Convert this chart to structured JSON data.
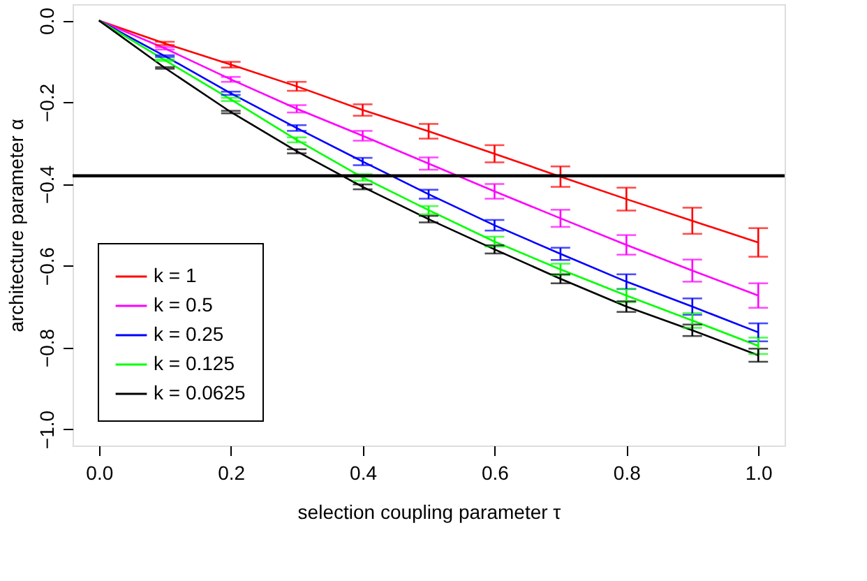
{
  "chart_data": {
    "type": "line",
    "xlabel": "selection coupling parameter τ",
    "ylabel": "architecture parameter α",
    "x": [
      0.0,
      0.1,
      0.2,
      0.3,
      0.4,
      0.5,
      0.6,
      0.7,
      0.8,
      0.9,
      1.0
    ],
    "series": [
      {
        "name": "k = 1",
        "color": "#ff0000",
        "values": [
          0,
          -0.056,
          -0.108,
          -0.161,
          -0.219,
          -0.271,
          -0.326,
          -0.382,
          -0.437,
          -0.49,
          -0.543
        ],
        "errors": [
          null,
          0.004,
          0.007,
          0.011,
          0.014,
          0.018,
          0.021,
          0.025,
          0.028,
          0.032,
          0.035
        ]
      },
      {
        "name": "k = 0.5",
        "color": "#ff00ff",
        "values": [
          0,
          -0.068,
          -0.144,
          -0.216,
          -0.282,
          -0.35,
          -0.418,
          -0.484,
          -0.549,
          -0.612,
          -0.673
        ],
        "errors": [
          null,
          0.003,
          0.006,
          0.009,
          0.012,
          0.015,
          0.018,
          0.021,
          0.024,
          0.027,
          0.03
        ]
      },
      {
        "name": "k = 0.25",
        "color": "#0000ff",
        "values": [
          0,
          -0.087,
          -0.178,
          -0.263,
          -0.345,
          -0.425,
          -0.501,
          -0.571,
          -0.639,
          -0.7,
          -0.763
        ],
        "errors": [
          null,
          0.002,
          0.004,
          0.007,
          0.009,
          0.011,
          0.013,
          0.015,
          0.018,
          0.02,
          0.022
        ]
      },
      {
        "name": "k = 0.125",
        "color": "#00ff00",
        "values": [
          0,
          -0.097,
          -0.193,
          -0.292,
          -0.384,
          -0.464,
          -0.541,
          -0.609,
          -0.673,
          -0.734,
          -0.796
        ],
        "errors": [
          null,
          0.002,
          0.004,
          0.006,
          0.008,
          0.01,
          0.012,
          0.014,
          0.016,
          0.018,
          0.02
        ]
      },
      {
        "name": "k = 0.0625",
        "color": "#000000",
        "values": [
          0,
          -0.116,
          -0.224,
          -0.32,
          -0.407,
          -0.486,
          -0.56,
          -0.632,
          -0.7,
          -0.758,
          -0.819
        ],
        "errors": [
          null,
          0.002,
          0.003,
          0.005,
          0.006,
          0.008,
          0.01,
          0.011,
          0.013,
          0.014,
          0.016
        ]
      }
    ],
    "xlim": [
      -0.04,
      1.04
    ],
    "ylim": [
      -1.04,
      0.04
    ],
    "xticks": [
      {
        "value": 0,
        "label": "0.0"
      },
      0.2,
      0.4,
      0.6,
      0.8,
      {
        "value": 1,
        "label": "1.0"
      }
    ],
    "yticks": [
      {
        "value": -1,
        "label": "−1.0"
      },
      -0.8,
      -0.6,
      -0.4,
      -0.2,
      {
        "value": 0,
        "label": "0.0"
      }
    ],
    "ref_lines": [
      {
        "axis": "y",
        "value": -0.38,
        "label": null,
        "color": "#000000"
      }
    ],
    "grid": false,
    "legend": "bottom left",
    "marker": "none",
    "line_style": "solid"
  }
}
